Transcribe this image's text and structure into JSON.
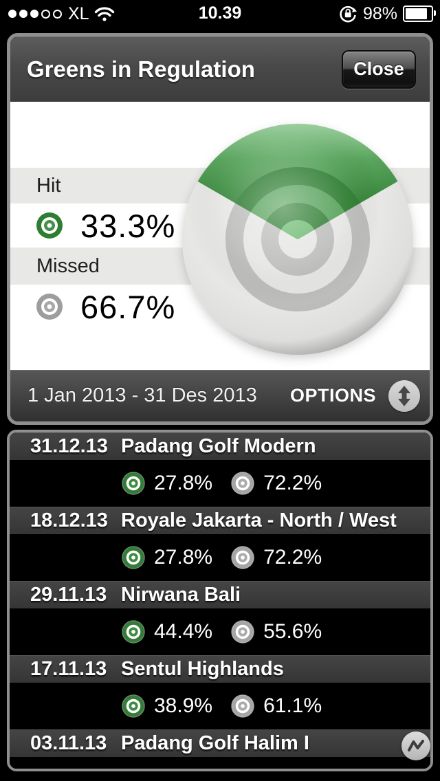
{
  "status_bar": {
    "carrier": "XL",
    "signal": {
      "filled": 3,
      "total": 5
    },
    "time": "10.39",
    "battery_percent": "98%",
    "icons": [
      "signal-dots",
      "wifi-icon",
      "orientation-lock-icon",
      "battery-icon"
    ]
  },
  "header": {
    "title": "Greens in Regulation",
    "close_label": "Close"
  },
  "chart_data": {
    "type": "pie",
    "title": "Greens in Regulation",
    "slices": [
      {
        "label": "Hit",
        "value": 33.3,
        "color": "#2e7d32"
      },
      {
        "label": "Missed",
        "value": 66.7,
        "color": "#bdbdbc"
      }
    ],
    "unit": "%",
    "style": "bullseye-target, hit wedge starts centered at 12 o'clock",
    "legend_position": "left"
  },
  "legend": {
    "hit_label": "Hit",
    "hit_value": "33.3%",
    "missed_label": "Missed",
    "missed_value": "66.7%"
  },
  "date_bar": {
    "range": "1 Jan 2013 - 31 Des 2013",
    "options_label": "OPTIONS"
  },
  "rounds": [
    {
      "date": "31.12.13",
      "course": "Padang Golf Modern",
      "hit": "27.8%",
      "missed": "72.2%"
    },
    {
      "date": "18.12.13",
      "course": "Royale Jakarta - North / West",
      "hit": "27.8%",
      "missed": "72.2%"
    },
    {
      "date": "29.11.13",
      "course": "Nirwana Bali",
      "hit": "44.4%",
      "missed": "55.6%"
    },
    {
      "date": "17.11.13",
      "course": "Sentul Highlands",
      "hit": "38.9%",
      "missed": "61.1%"
    },
    {
      "date": "03.11.13",
      "course": "Padang Golf Halim I",
      "hit": null,
      "missed": null
    }
  ],
  "colors": {
    "accent_green": "#2e7d32",
    "green_mid": "#55a159",
    "green_light": "#6ab96e",
    "gray_dark_ring": "#bdbdbc",
    "gray_light_ring": "#e6e6e5",
    "panel_border": "#8f8f8f"
  }
}
